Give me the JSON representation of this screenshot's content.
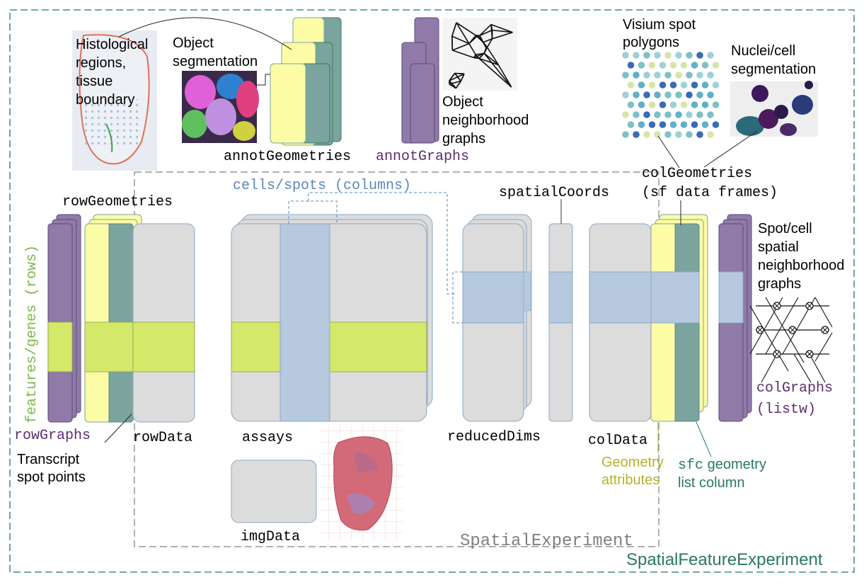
{
  "colors": {
    "gray": "#dcdcdc",
    "gray_edge": "#8aa8c8",
    "yellow": "#fcfca6",
    "teal": "#7ba49e",
    "purple": "#8f7aa8",
    "lime": "#d4e86a",
    "blue_band": "#b6c9df",
    "outer_border": "#1f7a5a",
    "inner_border": "#808080",
    "label_purple": "#5c2d6e",
    "label_green": "#7ab84a",
    "label_blue": "#5b87b8",
    "label_olive": "#b3b32a",
    "label_darkgreen": "#2a7a5a"
  },
  "labels": {
    "outer_title": "SpatialFeatureExperiment",
    "inner_title": "SpatialExperiment",
    "cells_spots": "cells/spots (columns)",
    "features_genes": "features/genes (rows)",
    "rowGeometries": "rowGeometries",
    "rowGraphs": "rowGraphs",
    "rowData": "rowData",
    "assays": "assays",
    "imgData": "imgData",
    "reducedDims": "reducedDims",
    "spatialCoords": "spatialCoords",
    "colData": "colData",
    "colGeometries_1": "colGeometries",
    "colGeometries_2": "(sf data frames)",
    "colGraphs_1": "colGraphs",
    "colGraphs_2": "(listw)",
    "annotGeometries": "annotGeometries",
    "annotGraphs": "annotGraphs",
    "geometry_attributes_1": "Geometry",
    "geometry_attributes_2": "attributes",
    "sfc_code": "sfc",
    "sfc_rest_1": " geometry",
    "sfc_rest_2": "list column",
    "transcript_1": "Transcript",
    "transcript_2": "spot points",
    "histological_1": "Histological",
    "histological_2": "regions,",
    "histological_3": "tissue",
    "histological_4": "boundary",
    "object_seg_1": "Object",
    "object_seg_2": "segmentation",
    "object_graph_1": "Object",
    "object_graph_2": "neighborhood",
    "object_graph_3": "graphs",
    "visium_1": "Visium spot",
    "visium_2": "polygons",
    "nuclei_1": "Nuclei/cell",
    "nuclei_2": "segmentation",
    "spot_graph_1": "Spot/cell",
    "spot_graph_2": "spatial",
    "spot_graph_3": "neighborhood",
    "spot_graph_4": "graphs"
  }
}
